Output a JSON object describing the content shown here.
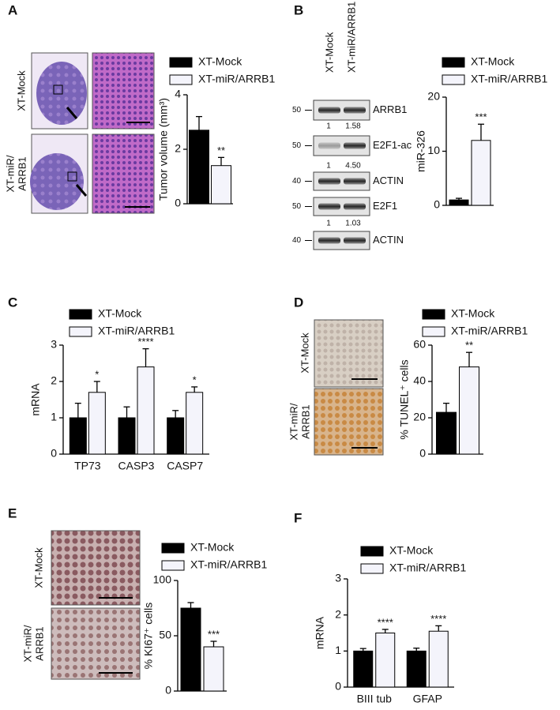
{
  "panel_letters": [
    "A",
    "B",
    "C",
    "D",
    "E",
    "F"
  ],
  "micrograph_labels": [
    [
      [
        "XT-Mock"
      ],
      [
        "XT-miR/",
        "ARRB1"
      ]
    ],
    [
      [
        "XT-Mock"
      ],
      [
        "XT-miR/",
        "ARRB1"
      ]
    ],
    [
      [
        "XT-Mock"
      ],
      [
        "XT-miR/",
        "ARRB1"
      ]
    ]
  ],
  "blot": {
    "lanes": [
      "XT-Mock",
      "XT-miR/ARRB1"
    ],
    "rows": [
      {
        "marker": 50,
        "name": "ARRB1",
        "quant": [
          "1",
          "1.58"
        ]
      },
      {
        "marker": 50,
        "name": "E2F1-ac",
        "quant": [
          "1",
          "4.50"
        ]
      },
      {
        "marker": 40,
        "name": "ACTIN"
      },
      {
        "marker": 50,
        "name": "E2F1",
        "quant": [
          "1",
          "1.03"
        ]
      },
      {
        "marker": 40,
        "name": "ACTIN"
      }
    ]
  },
  "chart_data": [
    {
      "type": "bar",
      "y_label": "Tumor volume (mm³)",
      "categories": [
        null
      ],
      "ylim": [
        0,
        4
      ],
      "yticks": [
        0,
        2,
        4
      ],
      "series": [
        {
          "name": "XT-Mock",
          "color": "#000000",
          "values": [
            2.7
          ],
          "errors": [
            0.5
          ]
        },
        {
          "name": "XT-miR/ARRB1",
          "color": "#f4f4fb",
          "values": [
            1.4
          ],
          "errors": [
            0.3
          ],
          "significance": [
            "**"
          ]
        }
      ]
    },
    {
      "type": "bar",
      "y_label": "miR-326",
      "categories": [
        null
      ],
      "ylim": [
        0,
        20
      ],
      "yticks": [
        0,
        10,
        20
      ],
      "series": [
        {
          "name": "XT-Mock",
          "color": "#000000",
          "values": [
            1
          ],
          "errors": [
            0.3
          ]
        },
        {
          "name": "XT-miR/ARRB1",
          "color": "#f4f4fb",
          "values": [
            12
          ],
          "errors": [
            3
          ],
          "significance": [
            "***"
          ]
        }
      ]
    },
    {
      "type": "bar",
      "y_label": "mRNA",
      "categories": [
        "TP73",
        "CASP3",
        "CASP7"
      ],
      "ylim": [
        0,
        3
      ],
      "yticks": [
        0,
        1,
        2,
        3
      ],
      "series": [
        {
          "name": "XT-Mock",
          "color": "#000000",
          "values": [
            1,
            1,
            1
          ],
          "errors": [
            0.4,
            0.3,
            0.2
          ]
        },
        {
          "name": "XT-miR/ARRB1",
          "color": "#f4f4fb",
          "values": [
            1.7,
            2.4,
            1.7
          ],
          "errors": [
            0.3,
            0.5,
            0.15
          ],
          "significance": [
            "*",
            "****",
            "*"
          ]
        }
      ]
    },
    {
      "type": "bar",
      "y_label": "% TUNEL⁺ cells",
      "categories": [
        null
      ],
      "ylim": [
        0,
        60
      ],
      "yticks": [
        0,
        20,
        40,
        60
      ],
      "series": [
        {
          "name": "XT-Mock",
          "color": "#000000",
          "values": [
            23
          ],
          "errors": [
            5
          ]
        },
        {
          "name": "XT-miR/ARRB1",
          "color": "#f4f4fb",
          "values": [
            48
          ],
          "errors": [
            8
          ],
          "significance": [
            "**"
          ]
        }
      ]
    },
    {
      "type": "bar",
      "y_label": "% KI67⁺ cells",
      "categories": [
        null
      ],
      "ylim": [
        0,
        100
      ],
      "yticks": [
        0,
        50,
        100
      ],
      "series": [
        {
          "name": "XT-Mock",
          "color": "#000000",
          "values": [
            75
          ],
          "errors": [
            5
          ]
        },
        {
          "name": "XT-miR/ARRB1",
          "color": "#f4f4fb",
          "values": [
            40
          ],
          "errors": [
            5
          ],
          "significance": [
            "***"
          ]
        }
      ]
    },
    {
      "type": "bar",
      "y_label": "mRNA",
      "categories": [
        "BIII tub",
        "GFAP"
      ],
      "ylim": [
        0,
        3
      ],
      "yticks": [
        0,
        1,
        2,
        3
      ],
      "series": [
        {
          "name": "XT-Mock",
          "color": "#000000",
          "values": [
            1,
            1
          ],
          "errors": [
            0.07,
            0.08
          ]
        },
        {
          "name": "XT-miR/ARRB1",
          "color": "#f4f4fb",
          "values": [
            1.5,
            1.55
          ],
          "errors": [
            0.1,
            0.15
          ],
          "significance": [
            "****",
            "****"
          ]
        }
      ]
    }
  ]
}
